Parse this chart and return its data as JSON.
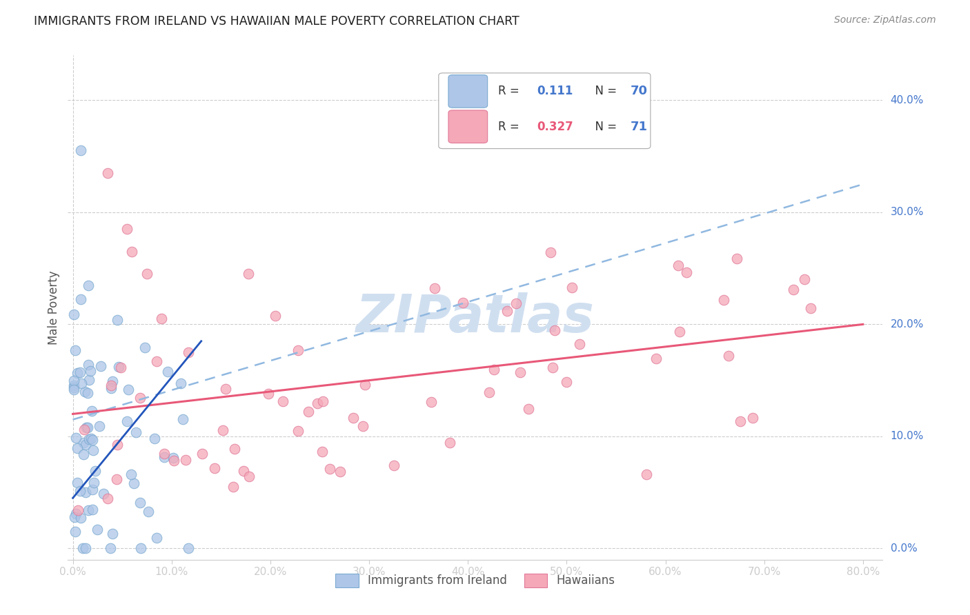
{
  "title": "IMMIGRANTS FROM IRELAND VS HAWAIIAN MALE POVERTY CORRELATION CHART",
  "source": "Source: ZipAtlas.com",
  "ylabel": "Male Poverty",
  "x_tick_labels": [
    "0.0%",
    "10.0%",
    "20.0%",
    "30.0%",
    "40.0%",
    "50.0%",
    "60.0%",
    "70.0%",
    "80.0%"
  ],
  "x_tick_values": [
    0,
    0.1,
    0.2,
    0.3,
    0.4,
    0.5,
    0.6,
    0.7,
    0.8
  ],
  "y_tick_labels": [
    "0.0%",
    "10.0%",
    "20.0%",
    "30.0%",
    "40.0%"
  ],
  "y_tick_values": [
    0,
    0.1,
    0.2,
    0.3,
    0.4
  ],
  "xlim": [
    -0.005,
    0.82
  ],
  "ylim": [
    -0.01,
    0.44
  ],
  "background_color": "#ffffff",
  "grid_color": "#cccccc",
  "blue_scatter_color": "#aec6e8",
  "blue_scatter_edge": "#7aaad0",
  "pink_scatter_color": "#f5a8b8",
  "pink_scatter_edge": "#e07898",
  "blue_solid_color": "#2255bb",
  "pink_line_color": "#e85878",
  "blue_dashed_color": "#90b8e0",
  "axis_label_color": "#4477cc",
  "title_color": "#202020",
  "watermark_color": "#d0dff0",
  "legend_text_color": "#333333",
  "legend_r_blue": "0.111",
  "legend_n_blue": "70",
  "legend_r_pink": "0.327",
  "legend_n_pink": "71",
  "blue_seed": 12345,
  "pink_seed": 67890
}
